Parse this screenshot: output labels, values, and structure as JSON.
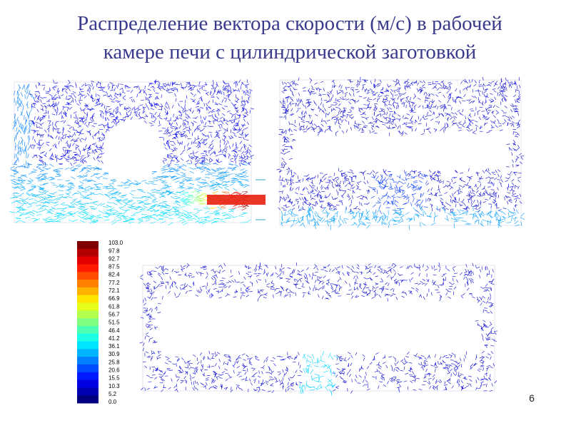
{
  "header": {
    "title_line1": "Распределение вектора скорости (м/с) в рабочей",
    "title_line2": "камере печи с цилиндрической заготовкой"
  },
  "legend": {
    "labels": [
      "103.0",
      "97.8",
      "92.7",
      "87.5",
      "82.4",
      "77.2",
      "72.1",
      "66.9",
      "61.8",
      "56.7",
      "51.5",
      "46.4",
      "41.2",
      "36.1",
      "30.9",
      "25.8",
      "20.6",
      "15.5",
      "10.3",
      "5.2",
      "0.0"
    ]
  },
  "footer": {
    "page_number": "6"
  }
}
